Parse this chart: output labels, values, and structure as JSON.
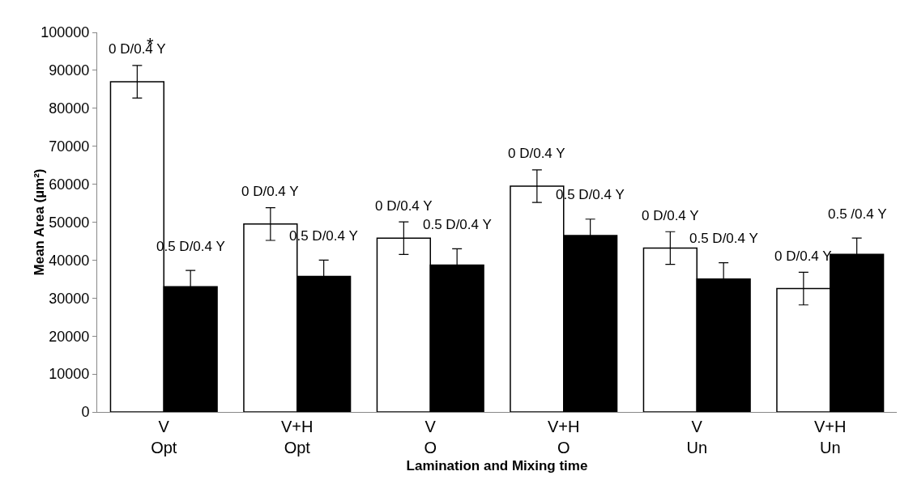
{
  "chart_data": {
    "type": "bar",
    "xlabel": "Lamination and Mixing time",
    "ylabel": "Mean Area (µm²)",
    "categories": [
      "V\nOpt",
      "V+H\nOpt",
      "V\nO",
      "V+H\nO",
      "V\nUn",
      "V+H\nUn"
    ],
    "series": [
      {
        "color": "#ffffff",
        "values": [
          87000,
          49500,
          45800,
          59500,
          43200,
          32500
        ],
        "errors": [
          4300,
          4300,
          4300,
          4300,
          4300,
          4300
        ]
      },
      {
        "color": "#000000",
        "values": [
          33000,
          35700,
          38700,
          46500,
          35000,
          41500
        ],
        "errors": [
          4300,
          4300,
          4300,
          4300,
          4300,
          4300
        ]
      }
    ],
    "annotations": [
      "*",
      {
        "text": "0 D/0.4 Y",
        "x": "V\nOpt",
        "y": 87000
      },
      {
        "text": "0.5 D/0.4 Y",
        "x": "V\nOpt",
        "y": 33000
      },
      {
        "text": "0 D/0.4 Y",
        "x": "V+H\nOpt",
        "y": 49500
      },
      {
        "text": "0.5 D/0.4 Y",
        "x": "V+H\nOpt",
        "y": 35700
      },
      {
        "text": "0 D/0.4 Y",
        "x": "V\nO",
        "y": 45800
      },
      {
        "text": "0.5 D/0.4 Y",
        "x": "V\nO",
        "y": 38700
      },
      {
        "text": "0 D/0.4 Y",
        "x": "V+H\nO",
        "y": 59500
      },
      {
        "text": "0.5 D/0.4 Y",
        "x": "V+H\nO",
        "y": 46500
      },
      {
        "text": "0 D/0.4 Y",
        "x": "V\nUn",
        "y": 43200
      },
      {
        "text": "0.5 D/0.4 Y",
        "x": "V\nUn",
        "y": 35000
      },
      {
        "text": "0 D/0.4 Y",
        "x": "V+H\nUn",
        "y": 32500
      },
      {
        "text": "0.5 /0.4 Y",
        "x": "V+H\nUn",
        "y": 41500
      }
    ],
    "ylim": [
      0,
      100000
    ],
    "yticks": [
      0,
      10000,
      20000,
      30000,
      40000,
      50000,
      60000,
      70000,
      80000,
      90000,
      100000
    ],
    "grid": false
  }
}
